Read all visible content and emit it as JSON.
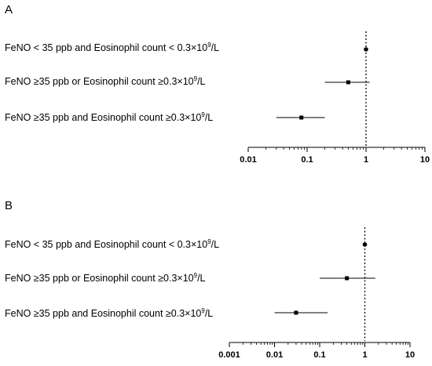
{
  "chart_data": [
    {
      "type": "forest",
      "panel": "A",
      "scale": "log",
      "xlim": [
        0.01,
        10
      ],
      "ticks": [
        0.01,
        0.1,
        1,
        10
      ],
      "tick_labels": [
        "0.01",
        "0.1",
        "1",
        "10"
      ],
      "reference_line": 1,
      "rows": [
        {
          "label_main": "FeNO < 35 ppb and Eosinophil count < 0.3×10",
          "label_sup": "9",
          "label_unit": "/L",
          "estimate": 1,
          "ci": [
            1,
            1
          ]
        },
        {
          "label_main": "FeNO ≥35 ppb or Eosinophil count ≥0.3×10",
          "label_sup": "9",
          "label_unit": "/L",
          "estimate": 0.5,
          "ci": [
            0.2,
            1.15
          ]
        },
        {
          "label_main": "FeNO ≥35 ppb and Eosinophil count ≥0.3×10",
          "label_sup": "9",
          "label_unit": "/L",
          "estimate": 0.08,
          "ci": [
            0.03,
            0.2
          ]
        }
      ]
    },
    {
      "type": "forest",
      "panel": "B",
      "scale": "log",
      "xlim": [
        0.001,
        10
      ],
      "ticks": [
        0.001,
        0.01,
        0.1,
        1,
        10
      ],
      "tick_labels": [
        "0.001",
        "0.01",
        "0.1",
        "1",
        "10"
      ],
      "reference_line": 1,
      "rows": [
        {
          "label_main": "FeNO < 35 ppb and Eosinophil count < 0.3×10",
          "label_sup": "9",
          "label_unit": "/L",
          "estimate": 1,
          "ci": [
            1,
            1
          ]
        },
        {
          "label_main": "FeNO ≥35 ppb or Eosinophil count ≥0.3×10",
          "label_sup": "9",
          "label_unit": "/L",
          "estimate": 0.4,
          "ci": [
            0.1,
            1.7
          ]
        },
        {
          "label_main": "FeNO ≥35 ppb and Eosinophil count ≥0.3×10",
          "label_sup": "9",
          "label_unit": "/L",
          "estimate": 0.03,
          "ci": [
            0.01,
            0.15
          ]
        }
      ]
    }
  ]
}
